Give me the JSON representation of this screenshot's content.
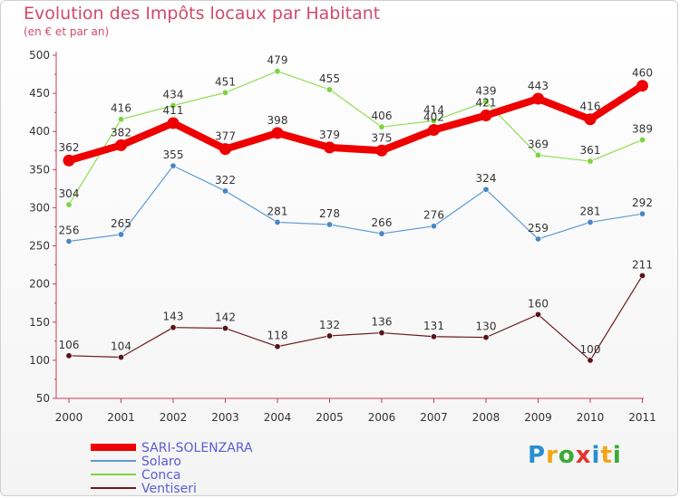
{
  "title": "Evolution des Impôts locaux par Habitant",
  "subtitle": "(en € et par an)",
  "logo": {
    "text": "Proxiti",
    "letters": [
      {
        "ch": "P",
        "color": "#2a8fd0"
      },
      {
        "ch": "r",
        "color": "#f2a516"
      },
      {
        "ch": "o",
        "color": "#3aaa35"
      },
      {
        "ch": "x",
        "color": "#e2352b"
      },
      {
        "ch": "i",
        "color": "#2a8fd0"
      },
      {
        "ch": "t",
        "color": "#f2a516"
      },
      {
        "ch": "i",
        "color": "#3aaa35"
      }
    ]
  },
  "chart_data": {
    "type": "line",
    "categories": [
      "2000",
      "2001",
      "2002",
      "2003",
      "2004",
      "2005",
      "2006",
      "2007",
      "2008",
      "2009",
      "2010",
      "2011"
    ],
    "yticks": [
      50,
      100,
      150,
      200,
      250,
      300,
      350,
      400,
      450,
      500
    ],
    "ylim": [
      50,
      500
    ],
    "grid": false,
    "legend_position": "bottom-left",
    "series": [
      {
        "name": "SARI-SOLENZARA",
        "color": "#ee0000",
        "values": [
          362,
          382,
          411,
          377,
          398,
          379,
          375,
          402,
          421,
          443,
          416,
          460
        ]
      },
      {
        "name": "Solaro",
        "color": "#5b9bd5",
        "values": [
          256,
          265,
          355,
          322,
          281,
          278,
          266,
          276,
          324,
          259,
          281,
          292
        ]
      },
      {
        "name": "Conca",
        "color": "#7dd33f",
        "values": [
          304,
          416,
          434,
          451,
          479,
          455,
          406,
          414,
          439,
          369,
          361,
          389
        ]
      },
      {
        "name": "Ventiseri",
        "color": "#6b1a1f",
        "values": [
          106,
          104,
          143,
          142,
          118,
          132,
          136,
          131,
          130,
          160,
          100,
          211
        ]
      }
    ]
  }
}
